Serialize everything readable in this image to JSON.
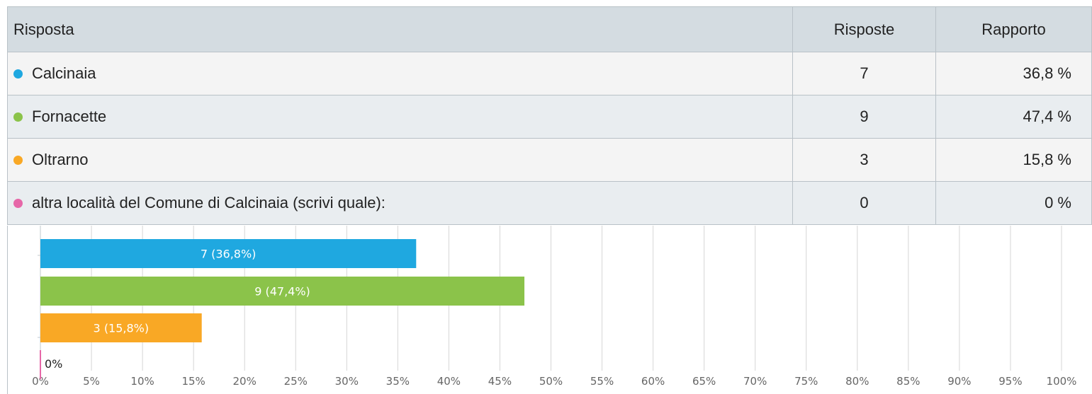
{
  "table": {
    "headers": {
      "answer": "Risposta",
      "count": "Risposte",
      "ratio": "Rapporto"
    },
    "rows": [
      {
        "label": "Calcinaia",
        "count": "7",
        "ratio": "36,8 %",
        "color": "#1fa8e0"
      },
      {
        "label": "Fornacette",
        "count": "9",
        "ratio": "47,4 %",
        "color": "#8bc34a"
      },
      {
        "label": "Oltrarno",
        "count": "3",
        "ratio": "15,8 %",
        "color": "#f9a825"
      },
      {
        "label": "altra località del Comune di Calcinaia (scrivi quale):",
        "count": "0",
        "ratio": "0 %",
        "color": "#e667a8"
      }
    ]
  },
  "chart_data": {
    "type": "bar",
    "orientation": "horizontal",
    "categories": [
      "Calcinaia",
      "Fornacette",
      "Oltrarno",
      "altra località del Comune di Calcinaia (scrivi quale):"
    ],
    "values": [
      36.8,
      47.4,
      15.8,
      0
    ],
    "counts": [
      7,
      9,
      3,
      0
    ],
    "bar_labels": [
      "7 (36,8%)",
      "9 (47,4%)",
      "3 (15,8%)",
      "0%"
    ],
    "colors": [
      "#1fa8e0",
      "#8bc34a",
      "#f9a825",
      "#e667a8"
    ],
    "xlim": [
      0,
      100
    ],
    "x_ticks": [
      "0%",
      "5%",
      "10%",
      "15%",
      "20%",
      "25%",
      "30%",
      "35%",
      "40%",
      "45%",
      "50%",
      "55%",
      "60%",
      "65%",
      "70%",
      "75%",
      "80%",
      "85%",
      "90%",
      "95%",
      "100%"
    ],
    "grid": true
  }
}
